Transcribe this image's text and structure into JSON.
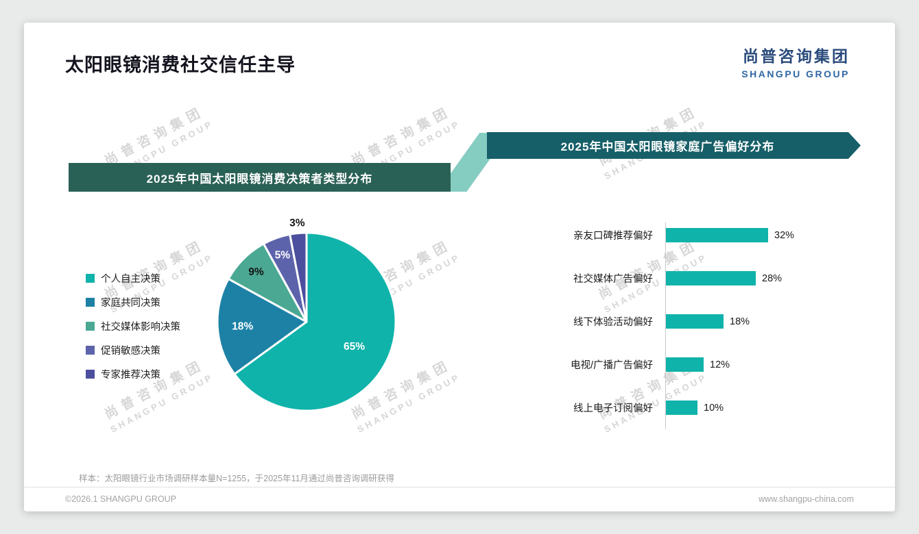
{
  "header": {
    "title": "太阳眼镜消费社交信任主导",
    "logo_cn": "尚普咨询集团",
    "logo_en": "SHANGPU GROUP"
  },
  "watermark": {
    "cn": "尚普咨询集团",
    "en": "SHANGPU GROUP"
  },
  "chart_data": [
    {
      "type": "pie",
      "title": "2025年中国太阳眼镜消费决策者类型分布",
      "labels": [
        "个人自主决策",
        "家庭共同决策",
        "社交媒体影响决策",
        "促销敏感决策",
        "专家推荐决策"
      ],
      "values": [
        65,
        18,
        9,
        5,
        3
      ],
      "unit": "%",
      "colors": [
        "#0fb3aa",
        "#1d81a6",
        "#4aa893",
        "#5d63ab",
        "#4c4f9d"
      ],
      "label_colors": [
        "#ffffff",
        "#ffffff",
        "#141414",
        "#ffffff",
        "#141414"
      ],
      "legend_position": "left"
    },
    {
      "type": "bar",
      "orientation": "horizontal",
      "title": "2025年中国太阳眼镜家庭广告偏好分布",
      "categories": [
        "亲友口碑推荐偏好",
        "社交媒体广告偏好",
        "线下体验活动偏好",
        "电视/广播广告偏好",
        "线上电子订阅偏好"
      ],
      "values": [
        32,
        28,
        18,
        12,
        10
      ],
      "unit": "%",
      "bar_color": "#0fb3aa",
      "xlim": [
        0,
        35
      ],
      "grid": false,
      "value_labels": true
    }
  ],
  "footnote": "样本：太阳眼镜行业市场调研样本量N=1255，于2025年11月通过尚普咨询调研获得",
  "footer": {
    "left": "©2026.1 SHANGPU GROUP",
    "right": "www.shangpu-china.com"
  }
}
